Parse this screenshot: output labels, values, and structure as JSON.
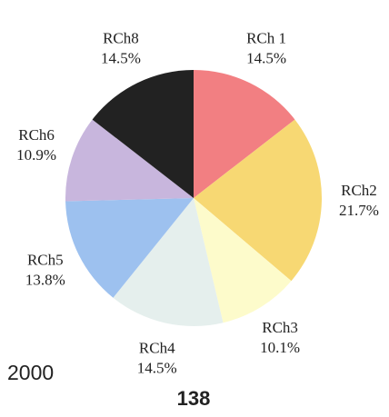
{
  "chart_data": {
    "type": "pie",
    "categories": [
      "RCh 1",
      "RCh2",
      "RCh3",
      "RCh4",
      "RCh5",
      "RCh6",
      "RCh8"
    ],
    "values": [
      14.5,
      21.7,
      10.1,
      14.5,
      13.8,
      10.9,
      14.5
    ],
    "value_labels": [
      "14.5%",
      "21.7%",
      "10.1%",
      "14.5%",
      "13.8%",
      "10.9%",
      "14.5%"
    ],
    "colors": [
      "#f27f82",
      "#f7d873",
      "#fdfbcb",
      "#e5efed",
      "#9dc1ef",
      "#c8b6dd",
      "#222222"
    ],
    "annotations": [
      "2000",
      "138"
    ]
  }
}
